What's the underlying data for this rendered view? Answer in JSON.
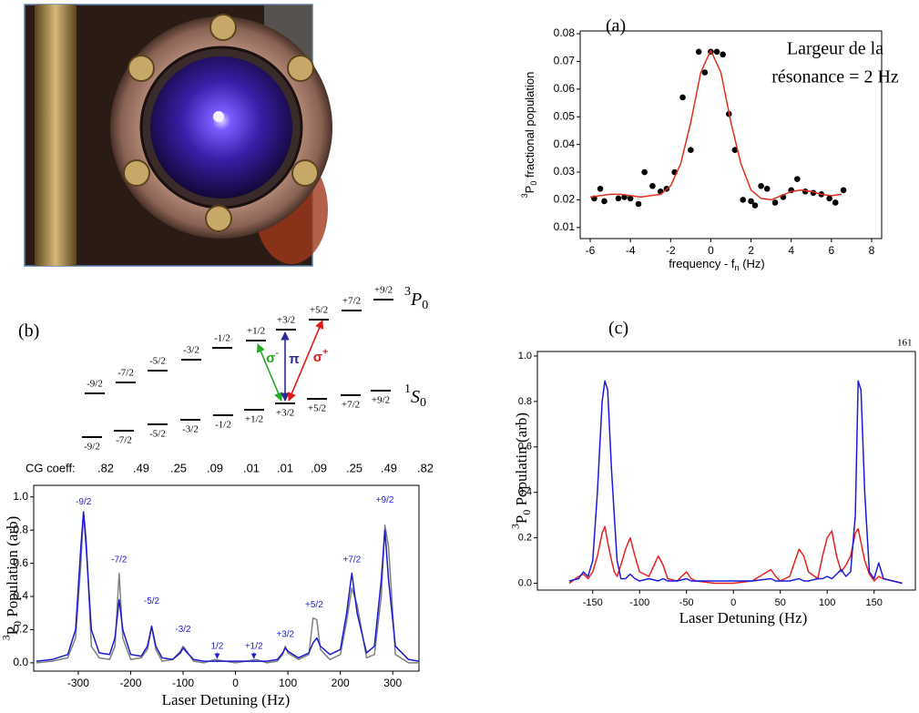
{
  "chart_data": [
    {
      "type": "scatter",
      "label": "(a)",
      "annotations": [
        {
          "text": "Largeur de la"
        },
        {
          "text": "résonance = 2 Hz"
        }
      ],
      "xlabel": [
        {
          "text": "frequency - f"
        },
        {
          "text": "n",
          "style": "sub"
        },
        {
          "text": " (Hz)"
        }
      ],
      "ylabel": [
        {
          "text": "3",
          "style": "sup"
        },
        {
          "text": "P"
        },
        {
          "text": "0",
          "style": "sub"
        },
        {
          "text": " fractional population"
        }
      ],
      "xlim": [
        -6.5,
        8.5
      ],
      "ylim": [
        0.006,
        0.081
      ],
      "xticks": [
        -6,
        -4,
        -2,
        0,
        2,
        4,
        6,
        8
      ],
      "yticks": [
        0.01,
        0.02,
        0.03,
        0.04,
        0.05,
        0.06,
        0.07,
        0.08
      ],
      "series": [
        {
          "type": "scatter",
          "color": "#000000",
          "x": [
            -5.8,
            -5.5,
            -5.3,
            -4.6,
            -4.3,
            -4.0,
            -3.6,
            -3.3,
            -2.9,
            -2.5,
            -2.2,
            -1.8,
            -1.4,
            -1.0,
            -0.6,
            -0.3,
            0,
            0.3,
            0.6,
            0.9,
            1.2,
            1.6,
            2.0,
            2.2,
            2.5,
            2.8,
            3.2,
            3.6,
            4.0,
            4.3,
            4.7,
            5.1,
            5.5,
            5.9,
            6.2,
            6.6
          ],
          "values": [
            0.0205,
            0.024,
            0.0195,
            0.0205,
            0.021,
            0.0205,
            0.0185,
            0.03,
            0.025,
            0.023,
            0.024,
            0.03,
            0.057,
            0.038,
            0.0735,
            0.066,
            0.0735,
            0.0735,
            0.0725,
            0.051,
            0.038,
            0.02,
            0.0195,
            0.018,
            0.025,
            0.024,
            0.019,
            0.021,
            0.0235,
            0.0275,
            0.023,
            0.0225,
            0.022,
            0.0205,
            0.019,
            0.0235
          ]
        },
        {
          "type": "line",
          "color": "#e0301e",
          "x": [
            -6,
            -5.5,
            -5,
            -4.5,
            -4,
            -3.5,
            -3,
            -2.5,
            -2,
            -1.5,
            -1,
            -0.5,
            0,
            0.5,
            1,
            1.5,
            2,
            2.5,
            3,
            3.5,
            4,
            4.5,
            5,
            5.5,
            6,
            6.5
          ],
          "values": [
            0.021,
            0.0215,
            0.022,
            0.022,
            0.0215,
            0.021,
            0.0215,
            0.022,
            0.025,
            0.033,
            0.048,
            0.066,
            0.074,
            0.066,
            0.048,
            0.033,
            0.0235,
            0.0205,
            0.02,
            0.0215,
            0.023,
            0.0235,
            0.023,
            0.022,
            0.0215,
            0.022
          ]
        }
      ]
    },
    {
      "type": "line",
      "xlabel": [
        {
          "text": "Laser Detuning (Hz)"
        }
      ],
      "ylabel": [
        {
          "text": "3",
          "style": "sup"
        },
        {
          "text": "P"
        },
        {
          "text": "0",
          "style": "sub"
        },
        {
          "text": " Population (arb)"
        }
      ],
      "xlim": [
        -385,
        350
      ],
      "ylim": [
        -0.05,
        1.07
      ],
      "xticks": [
        -300,
        -200,
        -100,
        0,
        100,
        200,
        300
      ],
      "yticks": [
        {
          "value": 0,
          "label": "0.0"
        },
        0.2,
        0.4,
        0.6,
        0.8,
        {
          "value": 1,
          "label": "1.0"
        }
      ],
      "annotations": [
        {
          "text": "-9/2",
          "x": -290,
          "y": 0.97
        },
        {
          "text": "-7/2",
          "x": -222,
          "y": 0.62
        },
        {
          "text": "-5/2",
          "x": -160,
          "y": 0.37
        },
        {
          "text": "-3/2",
          "x": -100,
          "y": 0.2
        },
        {
          "text": "1/2",
          "x": -35,
          "y": 0.1,
          "arrow": true
        },
        {
          "text": "+1/2",
          "x": 35,
          "y": 0.1,
          "arrow": true
        },
        {
          "text": "+3/2",
          "x": 95,
          "y": 0.17
        },
        {
          "text": "+5/2",
          "x": 150,
          "y": 0.35
        },
        {
          "text": "+7/2",
          "x": 222,
          "y": 0.62
        },
        {
          "text": "+9/2",
          "x": 285,
          "y": 0.98
        }
      ],
      "annotation_color": "#2222cc",
      "series": [
        {
          "color": "#808080",
          "x": [
            -380,
            -350,
            -320,
            -305,
            -295,
            -290,
            -285,
            -275,
            -260,
            -240,
            -230,
            -222,
            -215,
            -200,
            -180,
            -168,
            -160,
            -152,
            -140,
            -120,
            -105,
            -100,
            -95,
            -80,
            -60,
            -40,
            -20,
            0,
            20,
            40,
            60,
            80,
            90,
            95,
            100,
            120,
            140,
            148,
            155,
            162,
            180,
            200,
            212,
            222,
            232,
            250,
            265,
            278,
            285,
            292,
            305,
            330,
            350
          ],
          "values": [
            0,
            0.01,
            0.03,
            0.15,
            0.6,
            0.91,
            0.75,
            0.1,
            0.03,
            0.02,
            0.1,
            0.54,
            0.15,
            0.02,
            0.03,
            0.08,
            0.22,
            0.08,
            0.01,
            0.02,
            0.07,
            0.1,
            0.08,
            0.01,
            0,
            0.02,
            0.01,
            0,
            0.01,
            0.02,
            0,
            0.01,
            0.05,
            0.1,
            0.06,
            0.02,
            0.05,
            0.27,
            0.26,
            0.08,
            0.02,
            0.05,
            0.25,
            0.45,
            0.35,
            0.03,
            0.05,
            0.4,
            0.83,
            0.7,
            0.05,
            0,
            0
          ]
        },
        {
          "color": "#1a1ad0",
          "x": [
            -380,
            -350,
            -320,
            -305,
            -295,
            -290,
            -285,
            -275,
            -260,
            -240,
            -230,
            -222,
            -215,
            -200,
            -180,
            -168,
            -160,
            -152,
            -140,
            -120,
            -105,
            -100,
            -95,
            -80,
            -60,
            -40,
            -20,
            0,
            20,
            40,
            60,
            80,
            90,
            95,
            100,
            120,
            140,
            148,
            155,
            162,
            180,
            200,
            212,
            222,
            232,
            250,
            265,
            278,
            285,
            292,
            305,
            330,
            350
          ],
          "values": [
            0.01,
            0.02,
            0.05,
            0.2,
            0.7,
            0.91,
            0.7,
            0.2,
            0.06,
            0.05,
            0.15,
            0.38,
            0.2,
            0.05,
            0.04,
            0.1,
            0.22,
            0.1,
            0.03,
            0.02,
            0.06,
            0.09,
            0.07,
            0.02,
            0.01,
            0.01,
            0.01,
            0.01,
            0.01,
            0.01,
            0.01,
            0.02,
            0.06,
            0.09,
            0.07,
            0.03,
            0.06,
            0.12,
            0.15,
            0.1,
            0.05,
            0.08,
            0.3,
            0.54,
            0.3,
            0.06,
            0.1,
            0.5,
            0.8,
            0.5,
            0.1,
            0.02,
            0.01
          ]
        }
      ]
    },
    {
      "type": "line",
      "label": "(c)",
      "note": "161",
      "xlabel": [
        {
          "text": "Laser Detuning (Hz)"
        }
      ],
      "ylabel": [
        {
          "text": "3",
          "style": "sup"
        },
        {
          "text": "P"
        },
        {
          "text": "0",
          "style": "sub"
        },
        {
          "text": " Populatin (arb)"
        }
      ],
      "xlim": [
        -209,
        194
      ],
      "ylim": [
        -0.03,
        1.02
      ],
      "xticks": [
        -150,
        -100,
        -50,
        0,
        50,
        100,
        150
      ],
      "yticks": [
        {
          "value": 0,
          "label": "0.0"
        },
        0.2,
        0.4,
        0.6,
        0.8,
        {
          "value": 1,
          "label": "1.0"
        }
      ],
      "series": [
        {
          "color": "#e82020",
          "x": [
            -175,
            -165,
            -160,
            -155,
            -150,
            -145,
            -140,
            -137,
            -134,
            -130,
            -127,
            -124,
            -120,
            -115,
            -110,
            -105,
            -100,
            -90,
            -80,
            -75,
            -70,
            -60,
            -50,
            -45,
            -40,
            -20,
            0,
            20,
            40,
            45,
            50,
            60,
            70,
            75,
            80,
            90,
            95,
            100,
            105,
            110,
            115,
            120,
            125,
            130,
            133,
            136,
            140,
            145,
            150,
            155,
            160,
            170,
            180
          ],
          "values": [
            0,
            0.03,
            0.04,
            0.02,
            0.05,
            0.12,
            0.22,
            0.25,
            0.18,
            0.1,
            0.05,
            0.03,
            0.08,
            0.15,
            0.2,
            0.12,
            0.05,
            0.03,
            0.12,
            0.08,
            0.02,
            0.01,
            0.05,
            0.02,
            0.01,
            0,
            0,
            0.01,
            0.06,
            0.03,
            0.01,
            0.03,
            0.15,
            0.12,
            0.05,
            0.02,
            0.12,
            0.2,
            0.23,
            0.12,
            0.05,
            0.08,
            0.12,
            0.22,
            0.24,
            0.18,
            0.1,
            0.04,
            0.01,
            0.03,
            0.02,
            0.01,
            0
          ]
        },
        {
          "color": "#1a1ae0",
          "x": [
            -175,
            -165,
            -160,
            -155,
            -150,
            -145,
            -140,
            -137,
            -134,
            -130,
            -127,
            -124,
            -120,
            -115,
            -110,
            -105,
            -100,
            -90,
            -80,
            -75,
            -70,
            -60,
            -50,
            -45,
            -40,
            -20,
            0,
            20,
            40,
            45,
            50,
            60,
            70,
            75,
            80,
            90,
            95,
            100,
            105,
            110,
            115,
            120,
            125,
            130,
            133,
            136,
            140,
            145,
            150,
            155,
            160,
            170,
            180
          ],
          "values": [
            0.01,
            0.02,
            0.05,
            0.03,
            0.1,
            0.4,
            0.8,
            0.89,
            0.85,
            0.5,
            0.3,
            0.1,
            0.02,
            0.02,
            0.04,
            0.02,
            0.01,
            0.02,
            0.01,
            0.02,
            0.01,
            0.01,
            0.02,
            0.01,
            0.01,
            0.01,
            0.01,
            0.01,
            0.02,
            0.01,
            0.01,
            0.01,
            0.02,
            0.01,
            0.01,
            0.02,
            0.02,
            0.03,
            0.02,
            0.04,
            0.06,
            0.03,
            0.05,
            0.3,
            0.89,
            0.85,
            0.4,
            0.05,
            0.02,
            0.09,
            0.02,
            0.01,
            0
          ]
        }
      ]
    }
  ],
  "diagram": {
    "label": "(b)",
    "upper": {
      "name": [
        {
          "text": "3",
          "style": "sup"
        },
        {
          "text": "P",
          "style": "italic"
        },
        {
          "text": "0",
          "style": "sub"
        }
      ],
      "levels": [
        "-9/2",
        "-7/2",
        "-5/2",
        "-3/2",
        "-1/2",
        "+1/2",
        "+3/2",
        "+5/2",
        "+7/2",
        "+9/2"
      ]
    },
    "lower": {
      "name": [
        {
          "text": "1",
          "style": "sup"
        },
        {
          "text": "S",
          "style": "italic"
        },
        {
          "text": "0",
          "style": "sub"
        }
      ],
      "levels": [
        "-9/2",
        "-7/2",
        "-5/2",
        "-3/2",
        "-1/2",
        "+1/2",
        "+3/2",
        "+5/2",
        "+7/2",
        "+9/2"
      ]
    },
    "transitions": [
      {
        "label": [
          {
            "text": "σ"
          },
          {
            "text": "-",
            "style": "sup"
          }
        ],
        "color": "#22aa22"
      },
      {
        "label": [
          {
            "text": "π"
          }
        ],
        "color": "#2a2a9a"
      },
      {
        "label": [
          {
            "text": "σ"
          },
          {
            "text": "+",
            "style": "sup"
          }
        ],
        "color": "#e01818"
      }
    ],
    "cg_label": "CG coeff:",
    "cg": [
      ".82",
      ".49",
      ".25",
      ".09",
      ".01",
      ".01",
      ".09",
      ".25",
      ".49",
      ".82"
    ]
  }
}
